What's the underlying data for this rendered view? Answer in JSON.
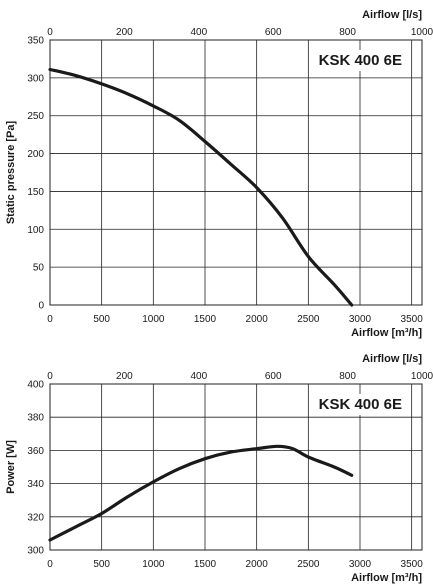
{
  "chart_data": [
    {
      "type": "line",
      "model_label": "KSK 400 6E",
      "ylabel": "Static pressure [Pa]",
      "xlabel_bottom": "Airflow [m³/h]",
      "xlabel_top": "Airflow [l/s]",
      "xlim": [
        0,
        3600
      ],
      "ylim": [
        0,
        350
      ],
      "x_ticks": [
        0,
        500,
        1000,
        1500,
        2000,
        2500,
        3000,
        3500
      ],
      "x_top_ticks": [
        0,
        200,
        400,
        600,
        800,
        1000
      ],
      "y_ticks": [
        0,
        50,
        100,
        150,
        200,
        250,
        300,
        350
      ],
      "grid": true,
      "series": [
        {
          "x": [
            0,
            250,
            500,
            750,
            1000,
            1250,
            1500,
            1750,
            2000,
            2250,
            2500,
            2750,
            2920
          ],
          "y": [
            311,
            303,
            292,
            279,
            263,
            244,
            216,
            186,
            155,
            115,
            64,
            27,
            0
          ]
        }
      ]
    },
    {
      "type": "line",
      "model_label": "KSK 400 6E",
      "ylabel": "Power [W]",
      "xlabel_bottom": "Airflow [m³/h]",
      "xlabel_top": "Airflow [l/s]",
      "xlim": [
        0,
        3600
      ],
      "ylim": [
        300,
        400
      ],
      "x_ticks": [
        0,
        500,
        1000,
        1500,
        2000,
        2500,
        3000,
        3500
      ],
      "x_top_ticks": [
        0,
        200,
        400,
        600,
        800,
        1000
      ],
      "y_ticks": [
        300,
        320,
        340,
        360,
        380,
        400
      ],
      "grid": true,
      "series": [
        {
          "x": [
            0,
            250,
            500,
            750,
            1000,
            1250,
            1500,
            1750,
            2000,
            2200,
            2350,
            2500,
            2750,
            2920
          ],
          "y": [
            306,
            314,
            322,
            332,
            341,
            349,
            355,
            359,
            361,
            362.5,
            361,
            356,
            350,
            345
          ]
        }
      ]
    }
  ]
}
